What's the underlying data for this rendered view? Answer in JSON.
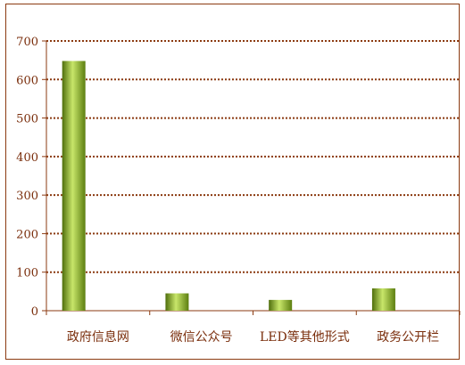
{
  "chart_data": {
    "type": "bar",
    "categories": [
      "政府信息网",
      "微信公众号",
      "LED等其他形式",
      "政务公开栏"
    ],
    "values": [
      648,
      45,
      28,
      58
    ],
    "ylim": [
      0,
      700
    ],
    "yticks": [
      0,
      100,
      200,
      300,
      400,
      500,
      600,
      700
    ],
    "grid": true,
    "legend": "none",
    "colors": {
      "bar_dark": "#4f6e0c",
      "bar_light": "#c8e66a",
      "grid": "#8b3a10",
      "axis": "#8b3a10",
      "text": "#7a2e0c"
    }
  }
}
